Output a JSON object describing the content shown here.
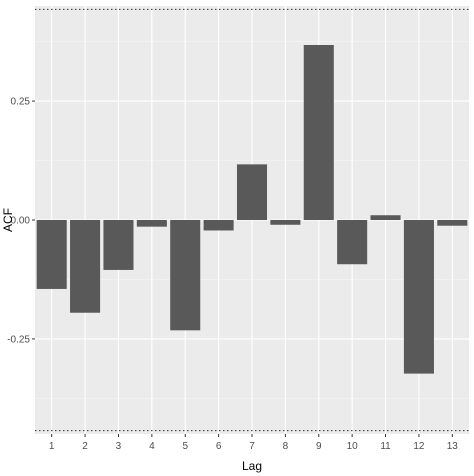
{
  "chart_data": {
    "type": "bar",
    "xlabel": "Lag",
    "ylabel": "ACF",
    "categories": [
      "1",
      "2",
      "3",
      "4",
      "5",
      "6",
      "7",
      "8",
      "9",
      "10",
      "11",
      "12",
      "13"
    ],
    "values": [
      -0.145,
      -0.195,
      -0.105,
      -0.014,
      -0.232,
      -0.022,
      0.117,
      -0.01,
      0.368,
      -0.093,
      0.01,
      -0.323,
      -0.012
    ],
    "ylim": [
      -0.45,
      0.45
    ],
    "yticks": [
      -0.25,
      0.0,
      0.25
    ],
    "ytick_labels": [
      "-0.25",
      "0.00",
      "0.25"
    ],
    "confidence_bounds": [
      0.443,
      -0.443
    ],
    "grid": true,
    "colors": {
      "bar": "#595959",
      "panel": "#ebebeb",
      "grid_major": "#ffffff",
      "grid_minor": "#f5f5f5",
      "bound_line": "#333333"
    }
  }
}
